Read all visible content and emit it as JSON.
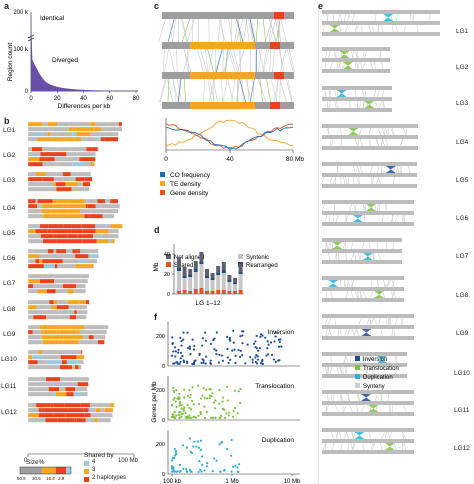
{
  "panel_labels": {
    "a": "a",
    "b": "b",
    "c": "c",
    "d": "d",
    "e": "e",
    "f": "f"
  },
  "panel_a": {
    "ylabel": "Region count",
    "yticks": [
      "0",
      "100 k",
      "200 k"
    ],
    "xticks": [
      "0",
      "20",
      "40",
      "60",
      "80"
    ],
    "xlabel": "Differences per kb",
    "annotations": [
      "Identical",
      "Diverged"
    ]
  },
  "panel_b": {
    "rows": [
      "LG1",
      "LG2",
      "LG3",
      "LG4",
      "LG5",
      "LG6",
      "LG7",
      "LG8",
      "LG9",
      "LG10",
      "LG11",
      "LG12"
    ],
    "xticks": [
      "0",
      "100 Mb"
    ],
    "legend": {
      "size_title": "Size%",
      "size_ticks": [
        "50.6",
        "30.5",
        "16.4",
        "2.9"
      ],
      "shared_title": "Shared by",
      "shared_items": [
        {
          "label": "4",
          "color": "#9ecae1"
        },
        {
          "label": "3",
          "color": "#f5a623"
        },
        {
          "label": "2 haplotypes",
          "color": "#e8431c"
        }
      ]
    }
  },
  "panel_c": {
    "xticks": [
      "0",
      "40",
      "80 Mb"
    ],
    "legend": [
      {
        "label": "CO frequency",
        "color": "#1f6fb4"
      },
      {
        "label": "TE density",
        "color": "#f5a623"
      },
      {
        "label": "Gene density",
        "color": "#e8531c"
      }
    ]
  },
  "panel_d": {
    "ylabel": "Mb",
    "yticks": [
      "0",
      "20",
      "40"
    ],
    "xlabel": "LG 1–12",
    "legend": [
      {
        "label": "Not aligned",
        "color": "#5f5f6f"
      },
      {
        "label": "Syntenic",
        "color": "#c7c7c7"
      },
      {
        "label": "Shared",
        "color": "#e8531c"
      },
      {
        "label": "Rearranged",
        "color": "#1f4e8c"
      }
    ]
  },
  "panel_e": {
    "rows": [
      "LG1",
      "LG2",
      "LG3",
      "LG4",
      "LG5",
      "LG6",
      "LG7",
      "LG8",
      "LG9",
      "LG10",
      "LG11",
      "LG12"
    ],
    "legend": [
      {
        "label": "Inversion",
        "color": "#1f4e9c"
      },
      {
        "label": "Translocation",
        "color": "#7fc241"
      },
      {
        "label": "Duplication",
        "color": "#2ab0d8"
      },
      {
        "label": "Synteny",
        "color": "#d0d0d0"
      }
    ]
  },
  "panel_f": {
    "ylabel": "Genes per Mb",
    "yticks": [
      "0",
      "200"
    ],
    "xticks": [
      "100 kb",
      "1 Mb",
      "10 Mb"
    ],
    "subplots": [
      {
        "label": "Inversion",
        "color": "#1f4e9c"
      },
      {
        "label": "Translocation",
        "color": "#7fc241"
      },
      {
        "label": "Duplication",
        "color": "#2ab0d8"
      }
    ]
  },
  "chart_data": [
    {
      "type": "area",
      "panel": "a",
      "xlabel": "Differences per kb",
      "ylabel": "Region count",
      "xlim": [
        0,
        80
      ],
      "x": [
        0,
        1,
        2,
        4,
        6,
        8,
        10,
        12,
        15,
        20,
        25,
        30,
        35,
        40,
        50,
        60,
        70,
        80
      ],
      "values": [
        170000,
        38000,
        34000,
        28000,
        22000,
        17000,
        13000,
        10000,
        7500,
        5000,
        3500,
        2500,
        1800,
        1300,
        800,
        500,
        300,
        150
      ]
    },
    {
      "type": "bar",
      "panel": "d",
      "xlabel": "LG 1–12",
      "ylabel": "Mb",
      "ylim": [
        0,
        50
      ],
      "categories": [
        "LG1",
        "LG2",
        "LG3",
        "LG4",
        "LG5",
        "LG6",
        "LG7",
        "LG8",
        "LG9",
        "LG10",
        "LG11",
        "LG12"
      ],
      "series": [
        {
          "name": "Shared",
          "values": [
            3,
            4,
            3,
            5,
            6,
            3,
            3,
            4,
            4,
            3,
            3,
            4
          ]
        },
        {
          "name": "Syntenic",
          "values": [
            20,
            12,
            14,
            17,
            24,
            13,
            11,
            15,
            17,
            9,
            7,
            16
          ]
        },
        {
          "name": "Rearranged",
          "values": [
            3,
            2,
            2,
            3,
            2,
            2,
            2,
            2,
            3,
            2,
            1,
            2
          ]
        },
        {
          "name": "Not aligned",
          "values": [
            11,
            9,
            6,
            8,
            10,
            7,
            5,
            7,
            8,
            5,
            5,
            8
          ]
        }
      ]
    }
  ]
}
